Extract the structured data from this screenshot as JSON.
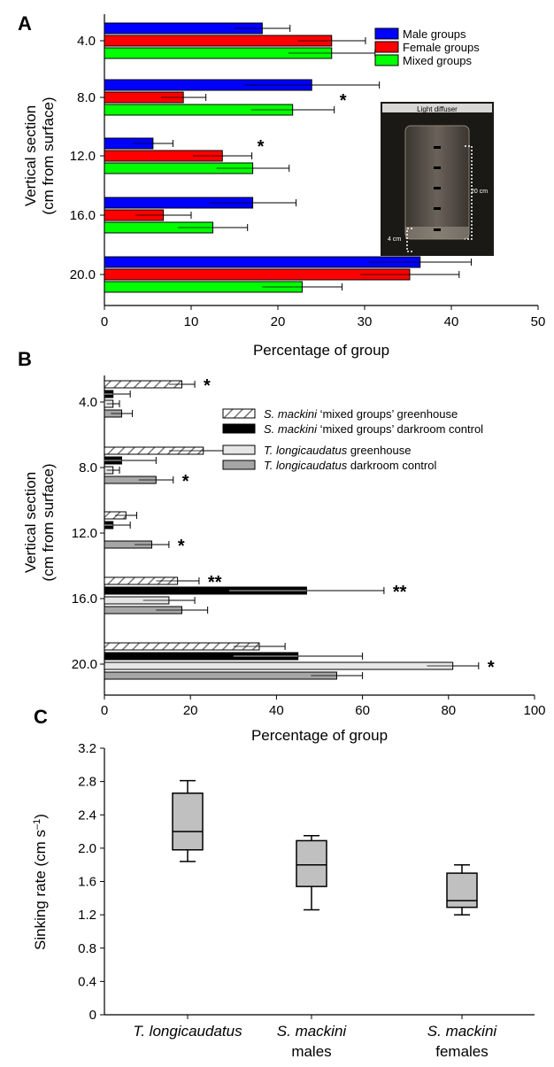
{
  "chart_data": [
    {
      "panel": "A",
      "type": "bar",
      "orientation": "horizontal",
      "ylabel_lines": [
        "Vertical section",
        "(cm from surface)"
      ],
      "xlabel": "Percentage of group",
      "xlim": [
        0,
        50
      ],
      "xticks": [
        0,
        10,
        20,
        30,
        40,
        50
      ],
      "categories": [
        "4.0",
        "8.0",
        "12.0",
        "16.0",
        "20.0"
      ],
      "colors": [
        "#0000ff",
        "#ff0000",
        "#00ff00"
      ],
      "legend_position": "top-right",
      "series": [
        {
          "name": "Male groups",
          "values": [
            18.2,
            23.9,
            5.6,
            17.1,
            36.4
          ],
          "errors": [
            3.2,
            7.8,
            2.3,
            5.0,
            5.9
          ]
        },
        {
          "name": "Female groups",
          "values": [
            26.2,
            9.1,
            13.6,
            6.8,
            35.2
          ],
          "errors": [
            3.9,
            2.6,
            3.4,
            3.2,
            5.7
          ]
        },
        {
          "name": "Mixed groups",
          "values": [
            26.2,
            21.7,
            17.1,
            12.5,
            22.8
          ],
          "errors": [
            5.0,
            4.8,
            4.2,
            4.0,
            4.6
          ]
        }
      ],
      "annotations": [
        {
          "text": "*",
          "category": "8.0",
          "series": "Mixed groups"
        },
        {
          "text": "*",
          "category": "12.0",
          "series": "Female groups"
        }
      ],
      "inset": {
        "title": "Light diffuser",
        "labels": [
          "20 cm",
          "4 cm"
        ]
      }
    },
    {
      "panel": "B",
      "type": "bar",
      "orientation": "horizontal",
      "ylabel_lines": [
        "Vertical section",
        "(cm from surface)"
      ],
      "xlabel": "Percentage of group",
      "xlim": [
        0,
        100
      ],
      "xticks": [
        0,
        20,
        40,
        60,
        80,
        100
      ],
      "categories": [
        "4.0",
        "8.0",
        "12.0",
        "16.0",
        "20.0"
      ],
      "legend_position": "right",
      "series": [
        {
          "name_italic": "S. mackini",
          "name_rest": " ‘mixed groups’ greenhouse",
          "fill": "hatched",
          "values": [
            18,
            23,
            5,
            17,
            36
          ],
          "errors": [
            3,
            8,
            2.5,
            5,
            6
          ]
        },
        {
          "name_italic": "S. mackini",
          "name_rest": " ‘mixed groups’ darkroom control",
          "fill": "#000000",
          "values": [
            2,
            4,
            2,
            47,
            45
          ],
          "errors": [
            4,
            8,
            4,
            18,
            15
          ]
        },
        {
          "name_italic": "T. longicaudatus",
          "name_rest": " greenhouse",
          "fill": "#e6e6e6",
          "values": [
            2,
            2,
            0,
            15,
            81
          ],
          "errors": [
            1.5,
            1.5,
            0,
            6,
            6
          ]
        },
        {
          "name_italic": "T. longicaudatus",
          "name_rest": " darkroom control",
          "fill": "#a6a6a6",
          "values": [
            4,
            12,
            11,
            18,
            54
          ],
          "errors": [
            2.5,
            4,
            4,
            6,
            6
          ]
        }
      ],
      "annotations": [
        {
          "text": "*",
          "category": "4.0",
          "series_index": 0
        },
        {
          "text": "*",
          "category": "8.0",
          "series_index": 0
        },
        {
          "text": "*",
          "category": "8.0",
          "series_index": 3
        },
        {
          "text": "*",
          "category": "12.0",
          "series_index": 3
        },
        {
          "text": "**",
          "category": "16.0",
          "series_index": 0
        },
        {
          "text": "**",
          "category": "16.0",
          "series_index": 1
        },
        {
          "text": "*",
          "category": "20.0",
          "series_index": 2
        }
      ]
    },
    {
      "panel": "C",
      "type": "box",
      "ylabel": "Sinking rate (cm s",
      "ylabel_sup": "–1",
      "ylabel_tail": ")",
      "ylim": [
        0,
        3.2
      ],
      "yticks": [
        "0",
        "0.4",
        "0.8",
        "1.2",
        "1.6",
        "2.0",
        "2.4",
        "2.8",
        "3.2"
      ],
      "box_color": "#c0c0c0",
      "categories": [
        {
          "line1": "T. longicaudatus",
          "line2": "",
          "italic_line1": true
        },
        {
          "line1": "S. mackini",
          "line2": "males",
          "italic_line1": true
        },
        {
          "line1": "S. mackini",
          "line2": "females",
          "italic_line1": true
        }
      ],
      "boxes": [
        {
          "whisker_low": 1.84,
          "q1": 1.98,
          "median": 2.2,
          "q3": 2.66,
          "whisker_high": 2.81
        },
        {
          "whisker_low": 1.26,
          "q1": 1.54,
          "median": 1.8,
          "q3": 2.09,
          "whisker_high": 2.15
        },
        {
          "whisker_low": 1.2,
          "q1": 1.29,
          "median": 1.37,
          "q3": 1.7,
          "whisker_high": 1.8
        }
      ]
    }
  ],
  "panel_labels": {
    "a": "A",
    "b": "B",
    "c": "C"
  }
}
